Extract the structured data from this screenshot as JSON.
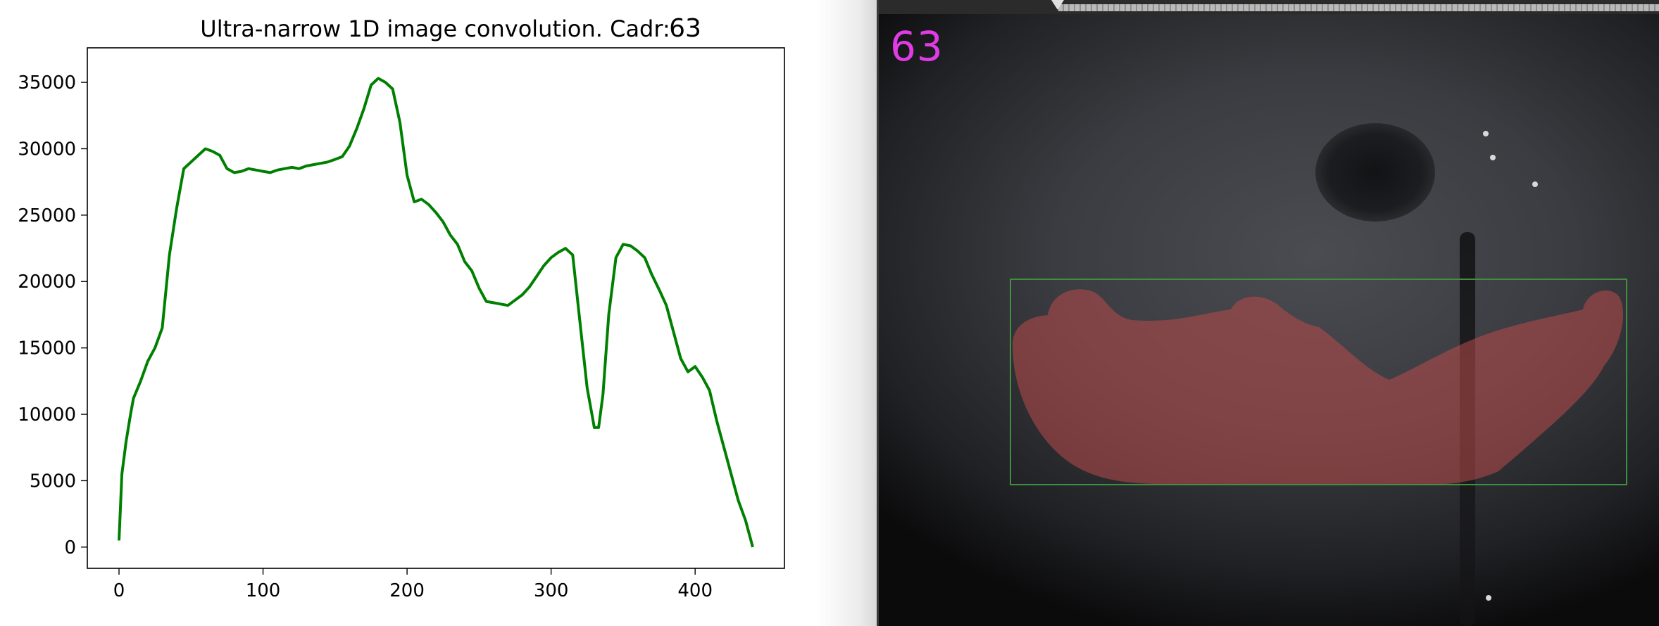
{
  "chart_data": {
    "type": "line",
    "title": "Ultra-narrow 1D image convolution. Cadr:",
    "title_frame": "63",
    "xlabel": "",
    "ylabel": "",
    "xlim": [
      -22,
      462
    ],
    "ylim": [
      -1600,
      37600
    ],
    "xticks": [
      0,
      100,
      200,
      300,
      400
    ],
    "yticks": [
      0,
      5000,
      10000,
      15000,
      20000,
      25000,
      30000,
      35000
    ],
    "grid": false,
    "series": [
      {
        "color": "#008000",
        "x": [
          0,
          2,
          5,
          8,
          10,
          15,
          20,
          25,
          30,
          35,
          40,
          45,
          50,
          55,
          60,
          65,
          70,
          75,
          80,
          85,
          90,
          95,
          100,
          105,
          110,
          115,
          120,
          125,
          130,
          135,
          140,
          145,
          150,
          155,
          160,
          165,
          170,
          175,
          180,
          185,
          190,
          195,
          200,
          205,
          210,
          215,
          220,
          225,
          230,
          235,
          240,
          245,
          250,
          255,
          260,
          265,
          270,
          275,
          280,
          285,
          290,
          295,
          300,
          305,
          310,
          315,
          320,
          325,
          330,
          333,
          336,
          340,
          345,
          350,
          355,
          360,
          365,
          370,
          375,
          380,
          385,
          390,
          395,
          400,
          405,
          410,
          415,
          420,
          425,
          430,
          435,
          440
        ],
        "y": [
          500,
          5500,
          8000,
          10000,
          11200,
          12500,
          14000,
          15000,
          16500,
          22000,
          25500,
          28500,
          29000,
          29500,
          30000,
          29800,
          29500,
          28500,
          28200,
          28300,
          28500,
          28400,
          28300,
          28200,
          28400,
          28500,
          28600,
          28500,
          28700,
          28800,
          28900,
          29000,
          29200,
          29400,
          30200,
          31500,
          33000,
          34800,
          35300,
          35000,
          34500,
          32000,
          28000,
          26000,
          26200,
          25800,
          25200,
          24500,
          23500,
          22800,
          21500,
          20800,
          19500,
          18500,
          18400,
          18300,
          18200,
          18600,
          19000,
          19600,
          20400,
          21200,
          21800,
          22200,
          22500,
          22000,
          17000,
          12000,
          9000,
          9000,
          11500,
          17500,
          21800,
          22800,
          22700,
          22300,
          21800,
          20500,
          19400,
          18200,
          16200,
          14200,
          13200,
          13600,
          12800,
          11800,
          9500,
          7500,
          5500,
          3500,
          2000,
          0
        ]
      }
    ]
  },
  "video": {
    "frame_counter": "63",
    "overlay_color": "#b94a4a",
    "box_color": "#3f8f3f",
    "counter_color": "#e13be6"
  }
}
